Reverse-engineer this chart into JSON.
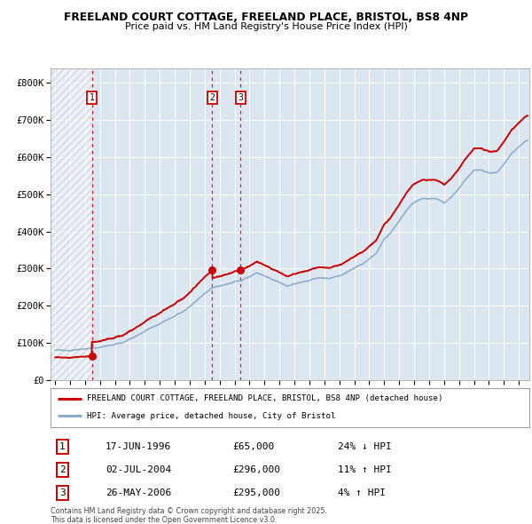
{
  "title1": "FREELAND COURT COTTAGE, FREELAND PLACE, BRISTOL, BS8 4NP",
  "title2": "Price paid vs. HM Land Registry's House Price Index (HPI)",
  "ylabel_ticks": [
    "£0",
    "£100K",
    "£200K",
    "£300K",
    "£400K",
    "£500K",
    "£600K",
    "£700K",
    "£800K"
  ],
  "ytick_vals": [
    0,
    100000,
    200000,
    300000,
    400000,
    500000,
    600000,
    700000,
    800000
  ],
  "ylim": [
    0,
    840000
  ],
  "xlim_start": 1993.7,
  "xlim_end": 2025.7,
  "background_color": "#dce6f1",
  "hatch_region_end": 1996.46,
  "sale_dates": [
    1996.46,
    2004.51,
    2006.4
  ],
  "sale_prices": [
    65000,
    296000,
    295000
  ],
  "sale_labels": [
    "1",
    "2",
    "3"
  ],
  "sale_info": [
    {
      "label": "1",
      "date": "17-JUN-1996",
      "price": "£65,000",
      "hpi": "24% ↓ HPI"
    },
    {
      "label": "2",
      "date": "02-JUL-2004",
      "price": "£296,000",
      "hpi": "11% ↑ HPI"
    },
    {
      "label": "3",
      "date": "26-MAY-2006",
      "price": "£295,000",
      "hpi": "4% ↑ HPI"
    }
  ],
  "legend_line1": "FREELAND COURT COTTAGE, FREELAND PLACE, BRISTOL, BS8 4NP (detached house)",
  "legend_line2": "HPI: Average price, detached house, City of Bristol",
  "footnote1": "Contains HM Land Registry data © Crown copyright and database right 2025.",
  "footnote2": "This data is licensed under the Open Government Licence v3.0.",
  "line_color_red": "#cc0000",
  "line_color_blue": "#88aacc",
  "dashed_line_color": "#cc0000",
  "label_box_color": "#cc0000"
}
